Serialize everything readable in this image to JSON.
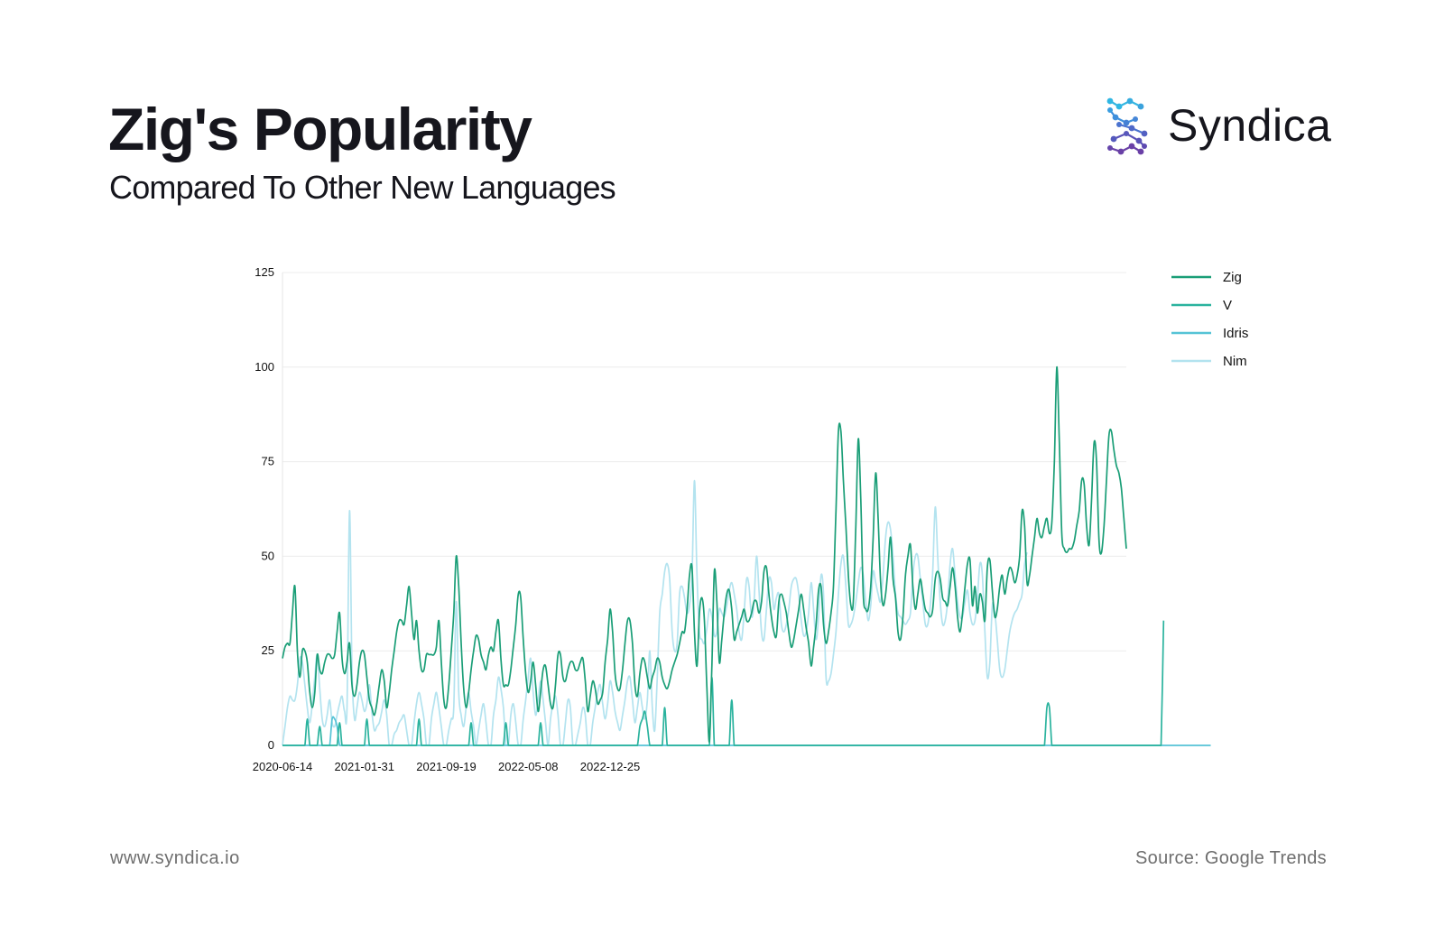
{
  "header": {
    "title": "Zig's Popularity",
    "subtitle": "Compared To Other New Languages"
  },
  "brand": {
    "name": "Syndica",
    "mark_icon": "syndica-s-dots-icon",
    "mark_colors": [
      "#2fb6e3",
      "#3f84d8",
      "#5b51b8",
      "#6a3fa6"
    ]
  },
  "footer": {
    "website": "www.syndica.io",
    "source": "Source: Google Trends"
  },
  "chart_data": {
    "type": "line",
    "title": "",
    "xlabel": "",
    "ylabel": "",
    "ylim": [
      0,
      125
    ],
    "yticks": [
      0,
      25,
      50,
      75,
      100,
      125
    ],
    "x_tick_labels": [
      "2020-06-14",
      "2021-01-31",
      "2021-09-19",
      "2022-05-08",
      "2022-12-25"
    ],
    "x_start": "2020-06-14",
    "x_interval_days": 7,
    "grid": "horizontal",
    "legend_position": "right",
    "series": [
      {
        "name": "Zig",
        "color": "#1a9e77",
        "values": [
          23,
          26,
          27,
          27,
          35,
          42,
          25,
          18,
          25,
          25,
          22,
          14,
          10,
          14,
          24,
          20,
          19,
          22,
          24,
          24,
          23,
          24,
          30,
          35,
          23,
          19,
          22,
          27,
          16,
          13,
          16,
          22,
          25,
          24,
          18,
          12,
          10,
          8,
          11,
          16,
          20,
          17,
          10,
          14,
          20,
          25,
          30,
          33,
          33,
          32,
          37,
          42,
          35,
          28,
          33,
          25,
          20,
          20,
          24,
          24,
          24,
          24,
          26,
          33,
          22,
          12,
          10,
          16,
          25,
          35,
          50,
          42,
          27,
          15,
          10,
          14,
          20,
          25,
          29,
          28,
          24,
          22,
          20,
          24,
          26,
          25,
          30,
          33,
          23,
          16,
          16,
          16,
          20,
          26,
          32,
          40,
          39,
          28,
          19,
          14,
          17,
          22,
          16,
          9,
          14,
          20,
          21,
          16,
          11,
          10,
          16,
          24,
          24,
          18,
          17,
          20,
          22,
          22,
          20,
          20,
          22,
          23,
          17,
          9,
          13,
          17,
          15,
          11,
          12,
          14,
          22,
          28,
          36,
          30,
          19,
          15,
          15,
          20,
          27,
          33,
          33,
          27,
          16,
          13,
          19,
          23,
          22,
          18,
          15,
          18,
          20,
          23,
          22,
          18,
          16,
          15,
          17,
          20,
          22,
          24,
          27,
          30,
          30,
          36,
          45,
          47,
          30,
          21,
          35,
          39,
          33,
          15,
          1,
          21,
          46,
          38,
          22,
          28,
          35,
          40,
          41,
          36,
          28,
          30,
          32,
          34,
          36,
          33,
          33,
          35,
          38,
          38,
          35,
          38,
          46,
          47,
          40,
          34,
          30,
          29,
          38,
          40,
          38,
          35,
          30,
          26,
          28,
          32,
          36,
          40,
          36,
          31,
          27,
          21,
          26,
          32,
          41,
          42,
          32,
          27,
          30,
          35,
          42,
          62,
          83,
          83,
          70,
          58,
          45,
          37,
          38,
          58,
          81,
          65,
          40,
          36,
          36,
          42,
          55,
          72,
          60,
          43,
          37,
          40,
          47,
          55,
          44,
          39,
          30,
          28,
          34,
          45,
          50,
          53,
          42,
          36,
          40,
          44,
          40,
          36,
          35,
          34,
          36,
          44,
          46,
          44,
          39,
          38,
          37,
          42,
          47,
          42,
          34,
          30,
          35,
          42,
          48,
          49,
          37,
          42,
          35,
          40,
          38,
          33,
          47,
          49,
          41,
          34,
          36,
          42,
          45,
          40,
          44,
          47,
          46,
          43,
          45,
          50,
          62,
          58,
          43,
          45,
          50,
          55,
          60,
          56,
          55,
          58,
          60,
          56,
          59,
          75,
          100,
          80,
          56,
          52,
          51,
          52,
          52,
          54,
          58,
          62,
          70,
          69,
          58,
          53,
          65,
          80,
          75,
          54,
          51,
          58,
          70,
          82,
          83,
          78,
          74,
          72,
          68,
          60,
          52
        ]
      },
      {
        "name": "V",
        "color": "#2bb39e",
        "values": [
          0,
          0,
          0,
          0,
          0,
          0,
          0,
          0,
          0,
          0,
          7,
          0,
          0,
          0,
          0,
          5,
          0,
          0,
          0,
          0,
          0,
          0,
          0,
          6,
          0,
          0,
          0,
          0,
          0,
          0,
          0,
          0,
          0,
          0,
          7,
          0,
          0,
          0,
          0,
          0,
          0,
          0,
          0,
          0,
          0,
          0,
          0,
          0,
          0,
          0,
          0,
          0,
          0,
          0,
          0,
          7,
          0,
          0,
          0,
          0,
          0,
          0,
          0,
          0,
          0,
          0,
          0,
          0,
          0,
          0,
          0,
          0,
          0,
          0,
          0,
          0,
          6,
          0,
          0,
          0,
          0,
          0,
          0,
          0,
          0,
          0,
          0,
          0,
          0,
          0,
          6,
          0,
          0,
          0,
          0,
          0,
          0,
          0,
          0,
          0,
          0,
          0,
          0,
          0,
          6,
          0,
          0,
          0,
          0,
          0,
          0,
          0,
          0,
          0,
          0,
          0,
          0,
          0,
          0,
          0,
          0,
          0,
          0,
          0,
          0,
          0,
          0,
          0,
          0,
          0,
          0,
          0,
          0,
          0,
          0,
          0,
          0,
          0,
          0,
          0,
          0,
          0,
          0,
          0,
          5,
          7,
          9,
          5,
          0,
          0,
          0,
          0,
          0,
          0,
          10,
          0,
          0,
          0,
          0,
          0,
          0,
          0,
          0,
          0,
          0,
          0,
          0,
          0,
          0,
          0,
          0,
          0,
          0,
          18,
          0,
          0,
          0,
          0,
          0,
          0,
          0,
          12,
          0,
          0,
          0,
          0,
          0,
          0,
          0,
          0,
          0,
          0,
          0,
          0,
          0,
          0,
          0,
          0,
          0,
          0,
          0,
          0,
          0,
          0,
          0,
          0,
          0,
          0,
          0,
          0,
          0,
          0,
          0,
          0,
          0,
          0,
          0,
          0,
          0,
          0,
          0,
          0,
          0,
          0,
          0,
          0,
          0,
          0,
          0,
          0,
          0,
          0,
          0,
          0,
          0,
          0,
          0,
          0,
          0,
          0,
          0,
          0,
          0,
          0,
          0,
          0,
          0,
          0,
          0,
          0,
          0,
          0,
          0,
          0,
          0,
          0,
          0,
          0,
          0,
          0,
          0,
          0,
          0,
          0,
          0,
          0,
          0,
          0,
          0,
          0,
          0,
          0,
          0,
          0,
          0,
          0,
          0,
          0,
          0,
          0,
          0,
          0,
          0,
          0,
          0,
          0,
          0,
          0,
          0,
          0,
          0,
          0,
          0,
          0,
          0,
          0,
          0,
          0,
          0,
          0,
          0,
          0,
          0,
          0,
          0,
          0,
          0,
          0,
          10,
          10,
          0,
          0,
          0,
          0,
          0,
          0,
          0,
          0,
          0,
          0,
          0,
          0,
          0,
          0,
          0,
          0,
          0,
          0,
          0,
          0,
          0,
          0,
          0,
          0,
          0,
          0,
          0,
          0,
          0,
          0,
          0,
          0,
          0,
          0,
          0,
          0,
          0,
          0,
          0,
          0,
          0,
          0,
          0,
          0,
          0,
          33
        ]
      },
      {
        "name": "Idris",
        "color": "#55c3d6",
        "values": [
          0,
          0,
          0,
          0,
          0,
          0,
          0,
          0,
          0,
          0,
          0,
          0,
          0,
          0,
          0,
          0,
          0,
          0,
          0,
          0,
          7,
          7,
          5,
          0,
          0,
          0,
          0,
          0,
          0,
          0,
          0,
          0,
          0,
          0,
          0,
          0,
          0,
          0,
          0,
          0,
          0,
          0,
          0,
          0,
          0,
          0,
          0,
          0,
          0,
          0,
          0,
          0,
          0,
          0,
          0,
          0,
          0,
          0,
          0,
          0,
          0,
          0,
          0,
          0,
          0,
          0,
          0,
          0,
          0,
          0,
          0,
          0,
          0,
          0,
          0,
          0,
          0,
          0,
          0,
          0,
          0,
          0,
          0,
          0,
          0,
          0,
          0,
          0,
          0,
          0,
          0,
          0,
          0,
          0,
          0,
          0,
          0,
          0,
          0,
          0,
          0,
          0,
          0,
          0,
          0,
          0,
          0,
          0,
          0,
          0,
          0,
          0,
          0,
          0,
          0,
          0,
          0,
          0,
          0,
          0,
          0,
          0,
          0,
          0,
          0,
          0,
          0,
          0,
          0,
          0,
          0,
          0,
          0,
          0,
          0,
          0,
          0,
          0,
          0,
          0,
          0,
          0,
          0,
          0,
          0,
          0,
          0,
          0,
          0,
          0,
          0,
          0,
          0,
          0,
          0,
          0,
          0,
          0,
          0,
          0,
          0,
          0,
          0,
          0,
          0,
          0,
          0,
          0,
          0,
          0,
          0,
          0,
          0,
          0,
          0,
          0,
          0,
          0,
          0,
          0,
          0,
          0,
          0,
          0,
          0,
          0,
          0,
          0,
          0,
          0,
          0,
          0,
          0,
          0,
          0,
          0,
          0,
          0,
          0,
          0,
          0,
          0,
          0,
          0,
          0,
          0,
          0,
          0,
          0,
          0,
          0,
          0,
          0,
          0,
          0,
          0,
          0,
          0,
          0,
          0,
          0,
          0,
          0,
          0,
          0,
          0,
          0,
          0,
          0,
          0,
          0,
          0,
          0,
          0,
          0,
          0,
          0,
          0,
          0,
          0,
          0,
          0,
          0,
          0,
          0,
          0,
          0,
          0,
          0,
          0,
          0,
          0,
          0,
          0,
          0,
          0,
          0,
          0,
          0,
          0,
          0,
          0,
          0,
          0,
          0,
          0,
          0,
          0,
          0,
          0,
          0,
          0,
          0,
          0,
          0,
          0,
          0,
          0,
          0,
          0,
          0,
          0,
          0,
          0,
          0,
          0,
          0,
          0,
          0,
          0,
          0,
          0,
          0,
          0,
          0,
          0,
          0,
          0,
          0,
          0,
          0,
          0,
          0,
          0,
          0,
          0,
          0,
          0,
          0,
          0,
          0,
          0,
          0,
          0,
          0,
          0,
          0,
          0,
          0,
          0,
          0,
          0,
          0,
          0,
          0,
          0,
          0,
          0,
          0,
          0,
          0,
          0,
          0,
          0,
          0,
          0,
          0,
          0,
          0,
          0,
          0,
          0,
          0,
          0,
          0,
          0,
          0,
          0,
          0,
          0,
          0,
          0,
          0,
          0,
          0,
          0,
          0,
          0,
          0,
          0,
          0,
          0,
          0,
          0,
          0,
          0,
          0,
          0,
          0,
          0,
          0,
          0,
          0,
          0,
          0
        ]
      },
      {
        "name": "Nim",
        "color": "#b3e3ef",
        "values": [
          0,
          5,
          10,
          13,
          12,
          12,
          16,
          23,
          22,
          16,
          10,
          6,
          11,
          18,
          24,
          15,
          7,
          5,
          8,
          12,
          6,
          5,
          8,
          11,
          13,
          9,
          10,
          62,
          20,
          7,
          10,
          14,
          12,
          9,
          11,
          16,
          9,
          4,
          5,
          6,
          9,
          12,
          8,
          0,
          0,
          3,
          4,
          6,
          7,
          8,
          4,
          0,
          0,
          6,
          11,
          14,
          11,
          7,
          0,
          0,
          7,
          11,
          14,
          10,
          5,
          0,
          0,
          4,
          7,
          10,
          38,
          14,
          8,
          5,
          10,
          14,
          9,
          5,
          0,
          4,
          8,
          11,
          6,
          0,
          0,
          8,
          12,
          18,
          15,
          10,
          0,
          0,
          8,
          11,
          6,
          0,
          0,
          7,
          12,
          18,
          23,
          14,
          8,
          12,
          17,
          12,
          6,
          0,
          7,
          11,
          13,
          8,
          0,
          0,
          6,
          12,
          10,
          0,
          0,
          3,
          6,
          10,
          8,
          0,
          0,
          6,
          10,
          14,
          16,
          11,
          7,
          11,
          17,
          14,
          9,
          6,
          4,
          8,
          12,
          17,
          18,
          12,
          6,
          10,
          14,
          10,
          7,
          12,
          25,
          10,
          4,
          18,
          35,
          40,
          46,
          48,
          44,
          30,
          25,
          27,
          40,
          42,
          39,
          35,
          37,
          45,
          70,
          45,
          30,
          28,
          27,
          31,
          36,
          34,
          29,
          30,
          36,
          35,
          34,
          37,
          41,
          43,
          40,
          36,
          30,
          28,
          35,
          44,
          42,
          34,
          38,
          50,
          41,
          30,
          28,
          36,
          44,
          43,
          36,
          39,
          40,
          32,
          30,
          32,
          36,
          42,
          44,
          44,
          40,
          33,
          29,
          30,
          35,
          43,
          36,
          28,
          34,
          45,
          40,
          18,
          17,
          19,
          24,
          30,
          40,
          48,
          50,
          42,
          32,
          32,
          34,
          38,
          43,
          47,
          45,
          38,
          33,
          37,
          46,
          43,
          40,
          38,
          45,
          55,
          59,
          57,
          50,
          40,
          35,
          34,
          33,
          32,
          33,
          35,
          45,
          50,
          50,
          44,
          38,
          32,
          32,
          37,
          46,
          63,
          50,
          38,
          32,
          33,
          38,
          48,
          52,
          45,
          38,
          34,
          34,
          38,
          41,
          35,
          32,
          33,
          39,
          48,
          45,
          30,
          18,
          22,
          37,
          35,
          28,
          20,
          18,
          20,
          25,
          30,
          33,
          35,
          36,
          38,
          40,
          48,
          51
        ]
      }
    ]
  }
}
